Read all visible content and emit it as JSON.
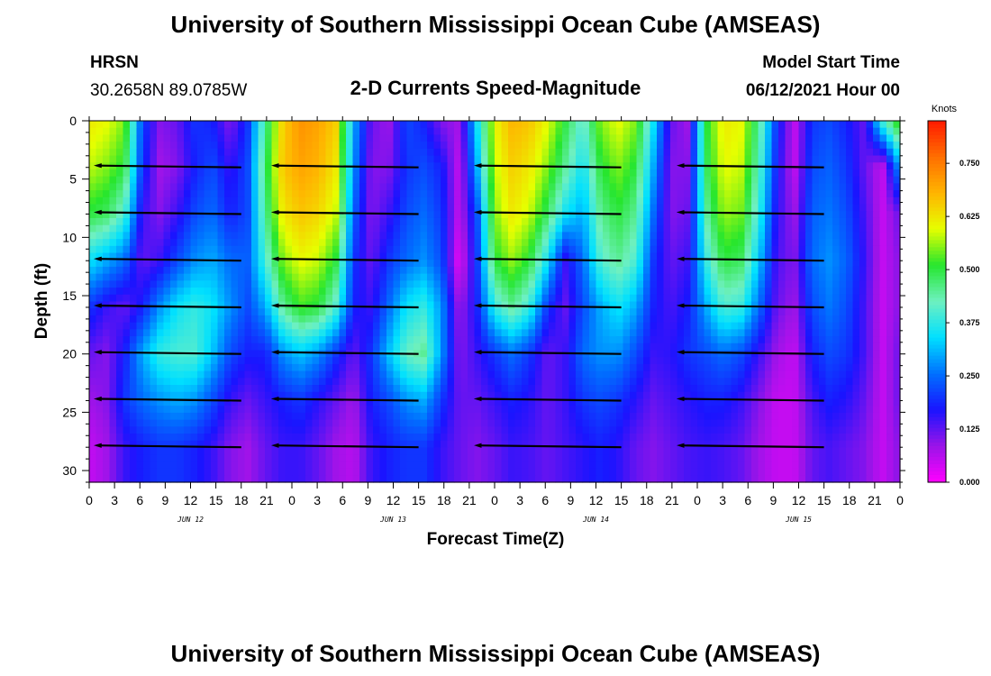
{
  "header": {
    "title": "University of Southern Mississippi Ocean Cube (AMSEAS)",
    "station": "HRSN",
    "coordinates": "30.2658N  89.0785W",
    "plot_title": "2-D Currents Speed-Magnitude",
    "model_start_label": "Model Start Time",
    "model_start_value": "06/12/2021 Hour 00"
  },
  "footer": {
    "title": "University of Southern Mississippi Ocean Cube (AMSEAS)"
  },
  "colorbar": {
    "units": "Knots",
    "min": 0,
    "max": 0.85,
    "tick_values": [
      0.0,
      0.125,
      0.25,
      0.375,
      0.5,
      0.625,
      0.75
    ],
    "tick_labels": [
      "0.000",
      "0.125",
      "0.250",
      "0.375",
      "0.500",
      "0.625",
      "0.750"
    ],
    "colors": [
      "#ff00ff",
      "#9a14e8",
      "#1a14ff",
      "#0070ff",
      "#00e0ff",
      "#6ef0c0",
      "#26e62e",
      "#e6ff00",
      "#ffb400",
      "#ff6e00",
      "#ff1a00"
    ]
  },
  "chart_data": {
    "type": "heatmap",
    "title": "2-D Currents Speed-Magnitude",
    "xlabel": "Forecast Time(Z)",
    "ylabel": "Depth (ft)",
    "x_range_hours": [
      0,
      96
    ],
    "ylim": [
      31,
      0
    ],
    "x_tick_labels": [
      "0",
      "3",
      "6",
      "9",
      "12",
      "15",
      "18",
      "21",
      "0",
      "3",
      "6",
      "9",
      "12",
      "15",
      "18",
      "21",
      "0",
      "3",
      "6",
      "9",
      "12",
      "15",
      "18",
      "21",
      "0",
      "3",
      "6",
      "9",
      "12",
      "15",
      "18",
      "21",
      "0"
    ],
    "y_ticks": [
      0,
      5,
      10,
      15,
      20,
      25,
      30
    ],
    "day_labels": [
      "JUN 12",
      "JUN 13",
      "JUN 14",
      "JUN 15"
    ],
    "day_label_hours": [
      12,
      36,
      60,
      84
    ],
    "depths_ft": [
      0,
      4,
      8,
      12,
      16,
      20,
      24,
      28
    ],
    "speed_knots_by_depth": [
      [
        0.62,
        0.6,
        0.55,
        0.22,
        0.1,
        0.12,
        0.2,
        0.18,
        0.1,
        0.2,
        0.45,
        0.65,
        0.72,
        0.7,
        0.65,
        0.3,
        0.12,
        0.08,
        0.22,
        0.18,
        0.1,
        0.08,
        0.35,
        0.6,
        0.68,
        0.66,
        0.6,
        0.5,
        0.4,
        0.55,
        0.6,
        0.55,
        0.35,
        0.12,
        0.08,
        0.5,
        0.62,
        0.6,
        0.45,
        0.2,
        0.05,
        0.2,
        0.22,
        0.18,
        0.12,
        0.4,
        0.55
      ],
      [
        0.58,
        0.55,
        0.5,
        0.2,
        0.08,
        0.1,
        0.18,
        0.22,
        0.15,
        0.22,
        0.48,
        0.66,
        0.7,
        0.68,
        0.62,
        0.28,
        0.1,
        0.1,
        0.2,
        0.22,
        0.18,
        0.05,
        0.3,
        0.58,
        0.65,
        0.62,
        0.55,
        0.45,
        0.35,
        0.5,
        0.55,
        0.5,
        0.3,
        0.1,
        0.1,
        0.48,
        0.6,
        0.58,
        0.42,
        0.18,
        0.05,
        0.22,
        0.24,
        0.2,
        0.12,
        0.05,
        0.3
      ],
      [
        0.5,
        0.48,
        0.4,
        0.15,
        0.1,
        0.15,
        0.22,
        0.25,
        0.18,
        0.22,
        0.45,
        0.62,
        0.66,
        0.64,
        0.58,
        0.24,
        0.1,
        0.15,
        0.22,
        0.25,
        0.2,
        0.05,
        0.22,
        0.55,
        0.62,
        0.58,
        0.48,
        0.35,
        0.3,
        0.45,
        0.5,
        0.45,
        0.25,
        0.1,
        0.12,
        0.44,
        0.56,
        0.54,
        0.38,
        0.16,
        0.08,
        0.24,
        0.26,
        0.22,
        0.14,
        0.05,
        0.12
      ],
      [
        0.35,
        0.3,
        0.25,
        0.12,
        0.15,
        0.22,
        0.28,
        0.3,
        0.25,
        0.24,
        0.4,
        0.55,
        0.6,
        0.58,
        0.5,
        0.2,
        0.12,
        0.2,
        0.25,
        0.28,
        0.22,
        0.02,
        0.2,
        0.5,
        0.56,
        0.5,
        0.35,
        0.15,
        0.25,
        0.4,
        0.45,
        0.4,
        0.2,
        0.12,
        0.15,
        0.38,
        0.5,
        0.48,
        0.32,
        0.14,
        0.1,
        0.25,
        0.28,
        0.24,
        0.15,
        0.05,
        0.1
      ],
      [
        0.2,
        0.15,
        0.12,
        0.18,
        0.28,
        0.35,
        0.38,
        0.35,
        0.28,
        0.22,
        0.3,
        0.45,
        0.52,
        0.5,
        0.4,
        0.18,
        0.15,
        0.25,
        0.35,
        0.38,
        0.28,
        0.08,
        0.18,
        0.38,
        0.45,
        0.38,
        0.2,
        0.12,
        0.22,
        0.3,
        0.35,
        0.3,
        0.18,
        0.14,
        0.18,
        0.3,
        0.4,
        0.38,
        0.25,
        0.12,
        0.08,
        0.22,
        0.26,
        0.22,
        0.14,
        0.05,
        0.1
      ],
      [
        0.12,
        0.1,
        0.18,
        0.3,
        0.38,
        0.4,
        0.4,
        0.32,
        0.22,
        0.18,
        0.18,
        0.28,
        0.32,
        0.28,
        0.2,
        0.12,
        0.2,
        0.32,
        0.42,
        0.45,
        0.28,
        0.1,
        0.15,
        0.2,
        0.25,
        0.2,
        0.12,
        0.15,
        0.25,
        0.28,
        0.28,
        0.22,
        0.15,
        0.16,
        0.2,
        0.22,
        0.25,
        0.22,
        0.15,
        0.08,
        0.05,
        0.18,
        0.22,
        0.2,
        0.14,
        0.05,
        0.12
      ],
      [
        0.08,
        0.1,
        0.2,
        0.25,
        0.28,
        0.3,
        0.28,
        0.22,
        0.15,
        0.12,
        0.15,
        0.18,
        0.2,
        0.16,
        0.12,
        0.08,
        0.18,
        0.22,
        0.28,
        0.3,
        0.2,
        0.12,
        0.12,
        0.15,
        0.18,
        0.16,
        0.12,
        0.15,
        0.2,
        0.22,
        0.2,
        0.16,
        0.12,
        0.14,
        0.16,
        0.18,
        0.18,
        0.15,
        0.1,
        0.05,
        0.05,
        0.14,
        0.18,
        0.16,
        0.12,
        0.05,
        0.12
      ],
      [
        0.05,
        0.08,
        0.15,
        0.18,
        0.2,
        0.2,
        0.18,
        0.15,
        0.1,
        0.08,
        0.12,
        0.15,
        0.15,
        0.12,
        0.08,
        0.06,
        0.15,
        0.18,
        0.2,
        0.2,
        0.15,
        0.12,
        0.1,
        0.12,
        0.15,
        0.14,
        0.12,
        0.14,
        0.16,
        0.18,
        0.16,
        0.12,
        0.1,
        0.12,
        0.14,
        0.15,
        0.14,
        0.12,
        0.08,
        0.05,
        0.05,
        0.12,
        0.14,
        0.12,
        0.1,
        0.05,
        0.1
      ]
    ],
    "vector_depths_ft": [
      4,
      8,
      12,
      16,
      20,
      24,
      28
    ],
    "vector_segments_hours": [
      [
        1,
        18
      ],
      [
        22,
        39
      ],
      [
        46,
        63
      ],
      [
        70,
        87
      ]
    ]
  }
}
